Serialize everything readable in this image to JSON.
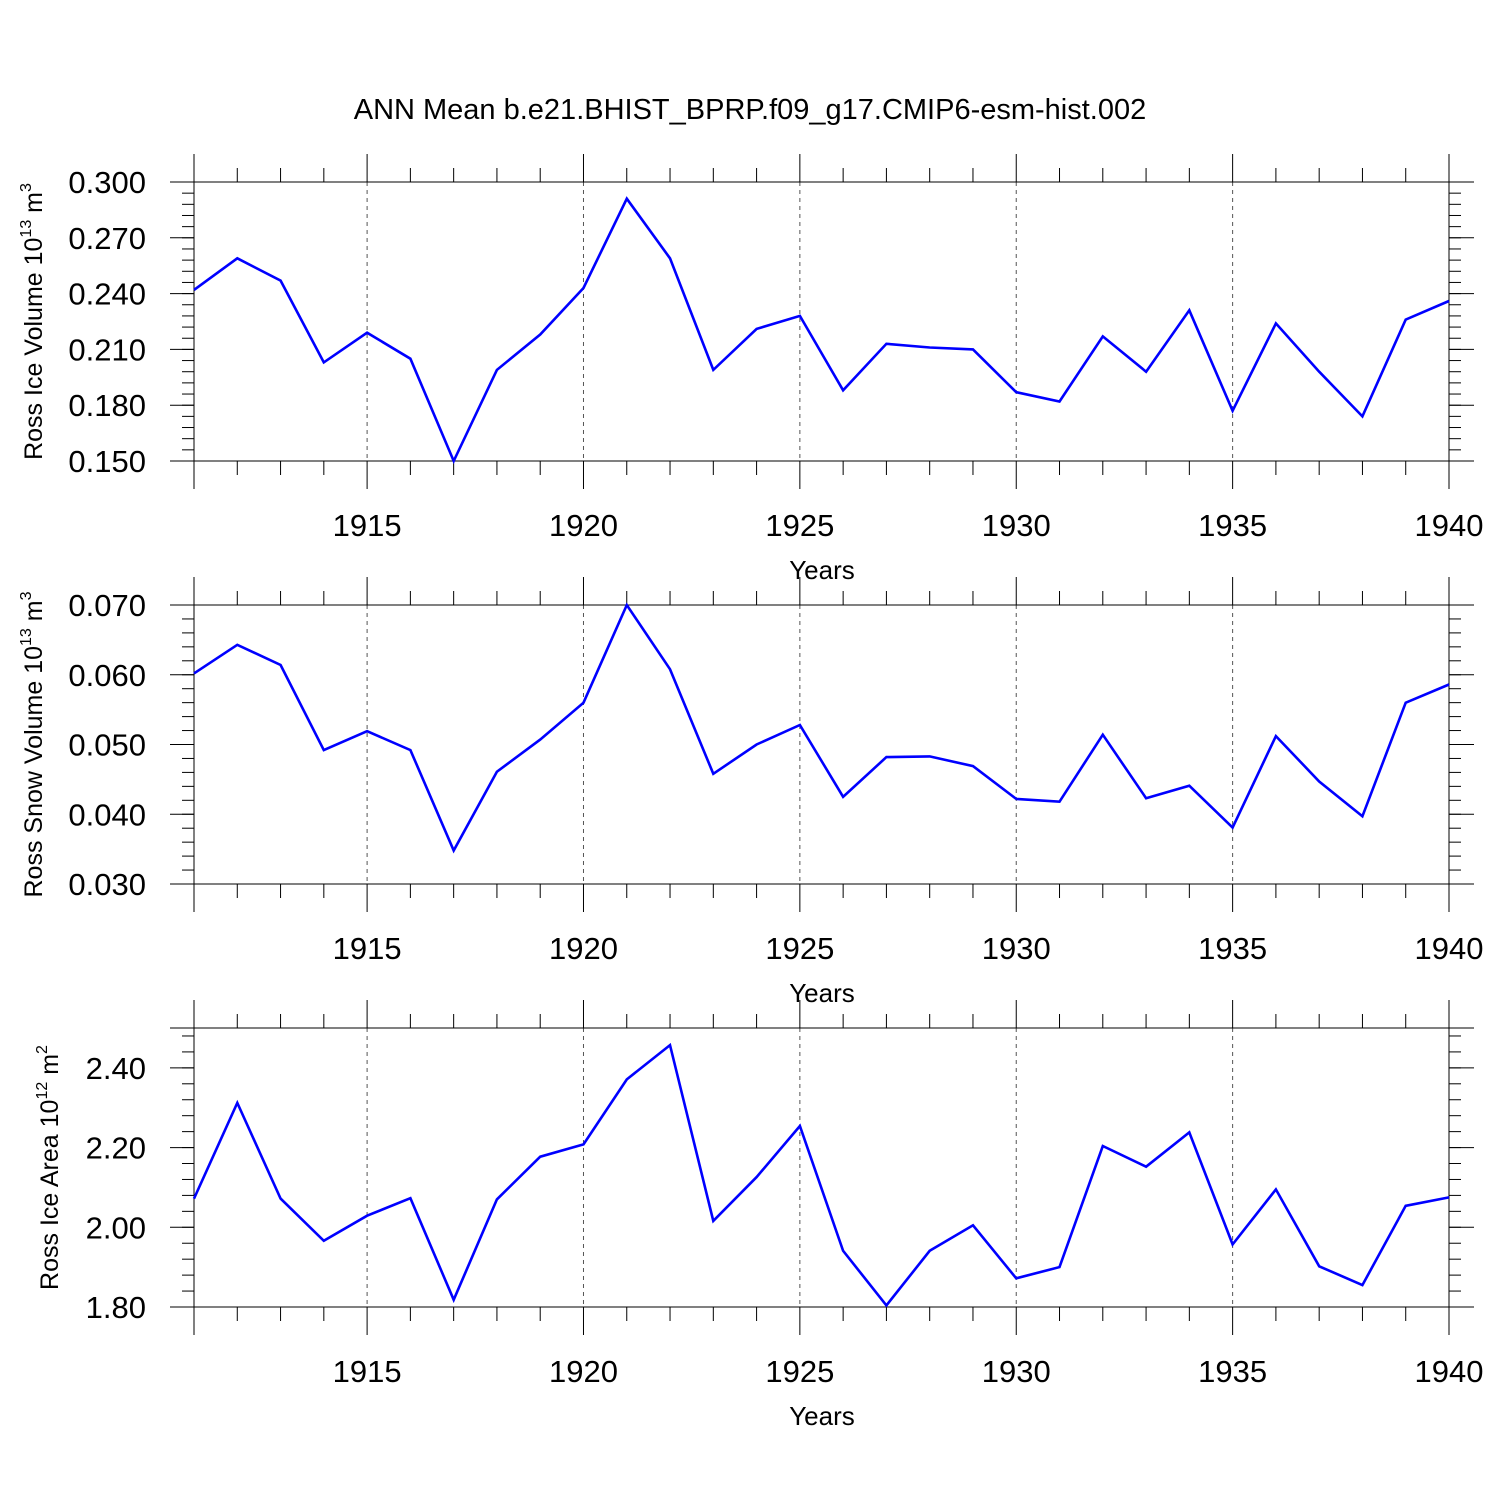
{
  "chart_data": [
    {
      "type": "line",
      "title": "ANN Mean b.e21.BHIST_BPRP.f09_g17.CMIP6-esm-hist.002",
      "xlabel": "Years",
      "ylabel": "Ross Ice Volume 10",
      "ylabel_exp": "13",
      "ylabel_unit": " m",
      "ylabel_unit_exp": "3",
      "xlim": [
        1911,
        1940
      ],
      "ylim": [
        0.15,
        0.3
      ],
      "yticks": [
        "0.300",
        "0.270",
        "0.240",
        "0.210",
        "0.180",
        "0.150"
      ],
      "xticks": [
        "1915",
        "1920",
        "1925",
        "1930",
        "1935",
        "1940"
      ],
      "grid": "vertical dashed at major x ticks",
      "line_color": "#0000ff",
      "series": [
        {
          "name": "Ross Ice Volume",
          "x": [
            1911,
            1912,
            1913,
            1914,
            1915,
            1916,
            1917,
            1918,
            1919,
            1920,
            1921,
            1922,
            1923,
            1924,
            1925,
            1926,
            1927,
            1928,
            1929,
            1930,
            1931,
            1932,
            1933,
            1934,
            1935,
            1936,
            1937,
            1938,
            1939,
            1940
          ],
          "values": [
            0.242,
            0.259,
            0.247,
            0.203,
            0.219,
            0.205,
            0.15,
            0.199,
            0.218,
            0.243,
            0.291,
            0.259,
            0.199,
            0.221,
            0.228,
            0.188,
            0.213,
            0.211,
            0.21,
            0.187,
            0.182,
            0.217,
            0.198,
            0.231,
            0.177,
            0.224,
            0.198,
            0.174,
            0.226,
            0.236
          ]
        }
      ]
    },
    {
      "type": "line",
      "title": "",
      "xlabel": "Years",
      "ylabel": "Ross Snow Volume 10",
      "ylabel_exp": "13",
      "ylabel_unit": " m",
      "ylabel_unit_exp": "3",
      "xlim": [
        1911,
        1940
      ],
      "ylim": [
        0.03,
        0.07
      ],
      "yticks": [
        "0.070",
        "0.060",
        "0.050",
        "0.040",
        "0.030"
      ],
      "xticks": [
        "1915",
        "1920",
        "1925",
        "1930",
        "1935",
        "1940"
      ],
      "grid": "vertical dashed at major x ticks",
      "line_color": "#0000ff",
      "series": [
        {
          "name": "Ross Snow Volume",
          "x": [
            1911,
            1912,
            1913,
            1914,
            1915,
            1916,
            1917,
            1918,
            1919,
            1920,
            1921,
            1922,
            1923,
            1924,
            1925,
            1926,
            1927,
            1928,
            1929,
            1930,
            1931,
            1932,
            1933,
            1934,
            1935,
            1936,
            1937,
            1938,
            1939,
            1940
          ],
          "values": [
            0.0602,
            0.0643,
            0.0614,
            0.0492,
            0.0519,
            0.0492,
            0.0348,
            0.0461,
            0.0507,
            0.056,
            0.07,
            0.0608,
            0.0458,
            0.05,
            0.0528,
            0.0425,
            0.0482,
            0.0483,
            0.0469,
            0.0422,
            0.0418,
            0.0514,
            0.0423,
            0.0441,
            0.0381,
            0.0512,
            0.0447,
            0.0397,
            0.056,
            0.0586
          ]
        }
      ]
    },
    {
      "type": "line",
      "title": "",
      "xlabel": "Years",
      "ylabel": "Ross Ice Area 10",
      "ylabel_exp": "12",
      "ylabel_unit": " m",
      "ylabel_unit_exp": "2",
      "xlim": [
        1911,
        1940
      ],
      "ylim": [
        1.8,
        2.5
      ],
      "yticks": [
        "2.40",
        "2.20",
        "2.00",
        "1.80"
      ],
      "xticks": [
        "1915",
        "1920",
        "1925",
        "1930",
        "1935",
        "1940"
      ],
      "grid": "vertical dashed at major x ticks",
      "line_color": "#0000ff",
      "series": [
        {
          "name": "Ross Ice Area",
          "x": [
            1911,
            1912,
            1913,
            1914,
            1915,
            1916,
            1917,
            1918,
            1919,
            1920,
            1921,
            1922,
            1923,
            1924,
            1925,
            1926,
            1927,
            1928,
            1929,
            1930,
            1931,
            1932,
            1933,
            1934,
            1935,
            1936,
            1937,
            1938,
            1939,
            1940
          ],
          "values": [
            2.072,
            2.312,
            2.072,
            1.966,
            2.029,
            2.073,
            1.818,
            2.07,
            2.177,
            2.208,
            2.371,
            2.457,
            2.016,
            2.126,
            2.254,
            1.941,
            1.804,
            1.941,
            2.005,
            1.872,
            1.9,
            2.204,
            2.152,
            2.238,
            1.957,
            2.095,
            1.902,
            1.855,
            2.054,
            2.075
          ]
        }
      ]
    }
  ]
}
